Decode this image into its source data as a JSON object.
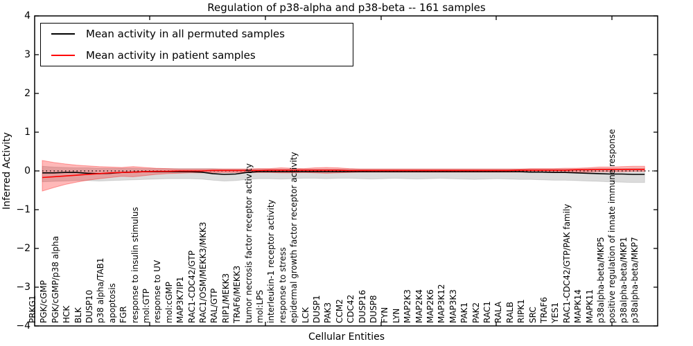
{
  "title": "Regulation of p38-alpha and p38-beta -- 161 samples",
  "xlabel": "Cellular Entities",
  "ylabel": "Inferred Activity",
  "yticks": [
    "4",
    "3",
    "2",
    "1",
    "0",
    "−1",
    "−2",
    "−3",
    "−4"
  ],
  "legend": [
    {
      "label": "Mean activity in all permuted samples",
      "color": "#000000"
    },
    {
      "label": "Mean activity in patient samples",
      "color": "#ff0000"
    }
  ],
  "chart_data": {
    "type": "line",
    "title": "Regulation of p38-alpha and p38-beta -- 161 samples",
    "xlabel": "Cellular Entities",
    "ylabel": "Inferred Activity",
    "ylim": [
      -4,
      4
    ],
    "baseline": 0,
    "grid": false,
    "legend_position": "upper left",
    "categories": [
      "PRKG1",
      "PGK/cGMP",
      "PGK/cGMP/p38 alpha",
      "HCK",
      "BLK",
      "DUSP10",
      "p38 alpha/TAB1",
      "apoptosis",
      "FGR",
      "response to insulin stimulus",
      "mol:GTP",
      "response to UV",
      "mol:cGMP",
      "MAP3K7IP1",
      "RAC1-CDC42/GTP",
      "RAC1/OSM/MEKK3/MKK3",
      "RAL/GTP",
      "RIP1/MEKK3",
      "TRAF6/MEKK3",
      "tumor necrosis factor receptor activity",
      "mol:LPS",
      "interleukin-1 receptor activity",
      "response to stress",
      "epidermal growth factor receptor activity",
      "LCK",
      "DUSP1",
      "PAK3",
      "CCM2",
      "CDC42",
      "DUSP16",
      "DUSP8",
      "FYN",
      "LYN",
      "MAP2K3",
      "MAP2K4",
      "MAP2K6",
      "MAP3K12",
      "MAP3K3",
      "PAK1",
      "PAK2",
      "RAC1",
      "RALA",
      "RALB",
      "RIPK1",
      "SRC",
      "TRAF6",
      "YES1",
      "RAC1-CDC42/GTP/PAK family",
      "MAPK14",
      "MAPK11",
      "p38alpha-beta/MKP5",
      "positive regulation of innate immune response",
      "p38alpha-beta/MKP1",
      "p38alpha-beta/MKP7"
    ],
    "series": [
      {
        "name": "Mean activity in all permuted samples",
        "color": "#000000",
        "band_color": "rgba(0,0,0,0.14)",
        "band_edge": "rgba(0,0,0,0.12)",
        "values": [
          -0.05,
          -0.05,
          -0.04,
          -0.04,
          -0.06,
          -0.07,
          -0.06,
          -0.04,
          -0.03,
          -0.02,
          -0.02,
          -0.02,
          -0.02,
          -0.02,
          -0.03,
          -0.07,
          -0.09,
          -0.08,
          -0.04,
          -0.02,
          -0.02,
          -0.02,
          -0.02,
          -0.02,
          -0.02,
          -0.02,
          -0.02,
          -0.02,
          -0.02,
          -0.02,
          -0.02,
          -0.02,
          -0.02,
          -0.02,
          -0.02,
          -0.02,
          -0.02,
          -0.02,
          -0.02,
          -0.02,
          -0.02,
          -0.02,
          -0.02,
          -0.03,
          -0.03,
          -0.04,
          -0.04,
          -0.05,
          -0.06,
          -0.07,
          -0.08,
          -0.08,
          -0.09,
          -0.09
        ],
        "band_upper": [
          0.12,
          0.1,
          0.09,
          0.08,
          0.08,
          0.07,
          0.07,
          0.07,
          0.07,
          0.06,
          0.06,
          0.06,
          0.06,
          0.06,
          0.06,
          0.06,
          0.05,
          0.05,
          0.05,
          0.05,
          0.05,
          0.05,
          0.05,
          0.05,
          0.05,
          0.05,
          0.05,
          0.05,
          0.05,
          0.05,
          0.05,
          0.05,
          0.05,
          0.05,
          0.05,
          0.05,
          0.05,
          0.05,
          0.05,
          0.05,
          0.05,
          0.05,
          0.05,
          0.05,
          0.05,
          0.05,
          0.05,
          0.05,
          0.06,
          0.06,
          0.06,
          0.06,
          0.07,
          0.07
        ],
        "band_lower": [
          -0.28,
          -0.27,
          -0.26,
          -0.25,
          -0.25,
          -0.26,
          -0.25,
          -0.24,
          -0.23,
          -0.22,
          -0.21,
          -0.2,
          -0.2,
          -0.2,
          -0.21,
          -0.24,
          -0.26,
          -0.25,
          -0.22,
          -0.2,
          -0.2,
          -0.21,
          -0.2,
          -0.19,
          -0.19,
          -0.2,
          -0.19,
          -0.19,
          -0.2,
          -0.21,
          -0.2,
          -0.19,
          -0.2,
          -0.21,
          -0.2,
          -0.19,
          -0.2,
          -0.21,
          -0.22,
          -0.21,
          -0.2,
          -0.21,
          -0.22,
          -0.22,
          -0.23,
          -0.24,
          -0.24,
          -0.25,
          -0.26,
          -0.27,
          -0.28,
          -0.29,
          -0.3,
          -0.3
        ]
      },
      {
        "name": "Mean activity in patient samples",
        "color": "#ff0000",
        "band_color": "rgba(255,0,0,0.28)",
        "band_edge": "rgba(255,0,0,0.35)",
        "values": [
          -0.17,
          -0.15,
          -0.13,
          -0.11,
          -0.09,
          -0.07,
          -0.05,
          -0.04,
          -0.03,
          -0.02,
          -0.01,
          -0.01,
          0.0,
          0.0,
          0.0,
          0.01,
          0.01,
          0.01,
          0.01,
          0.01,
          0.02,
          0.02,
          0.02,
          0.02,
          0.02,
          0.02,
          0.02,
          0.01,
          0.01,
          0.01,
          0.01,
          0.01,
          0.01,
          0.01,
          0.01,
          0.01,
          0.01,
          0.01,
          0.01,
          0.01,
          0.01,
          0.01,
          0.02,
          0.02,
          0.02,
          0.02,
          0.02,
          0.03,
          0.03,
          0.04,
          0.04,
          0.04,
          0.04,
          0.04
        ],
        "band_upper": [
          0.27,
          0.22,
          0.18,
          0.15,
          0.13,
          0.11,
          0.1,
          0.09,
          0.11,
          0.09,
          0.07,
          0.06,
          0.05,
          0.05,
          0.05,
          0.05,
          0.05,
          0.05,
          0.05,
          0.06,
          0.06,
          0.08,
          0.07,
          0.06,
          0.08,
          0.09,
          0.08,
          0.06,
          0.05,
          0.05,
          0.05,
          0.05,
          0.05,
          0.05,
          0.05,
          0.05,
          0.05,
          0.05,
          0.05,
          0.05,
          0.05,
          0.05,
          0.05,
          0.06,
          0.06,
          0.06,
          0.07,
          0.07,
          0.08,
          0.1,
          0.1,
          0.11,
          0.12,
          0.12
        ],
        "band_lower": [
          -0.52,
          -0.43,
          -0.35,
          -0.29,
          -0.24,
          -0.2,
          -0.17,
          -0.14,
          -0.15,
          -0.12,
          -0.09,
          -0.07,
          -0.06,
          -0.05,
          -0.05,
          -0.04,
          -0.04,
          -0.04,
          -0.04,
          -0.04,
          -0.04,
          -0.05,
          -0.05,
          -0.04,
          -0.05,
          -0.06,
          -0.05,
          -0.04,
          -0.03,
          -0.03,
          -0.03,
          -0.03,
          -0.03,
          -0.03,
          -0.03,
          -0.03,
          -0.03,
          -0.03,
          -0.03,
          -0.03,
          -0.03,
          -0.03,
          -0.03,
          -0.03,
          -0.03,
          -0.03,
          -0.03,
          -0.03,
          -0.03,
          -0.02,
          -0.02,
          -0.02,
          -0.01,
          -0.01
        ]
      }
    ]
  }
}
